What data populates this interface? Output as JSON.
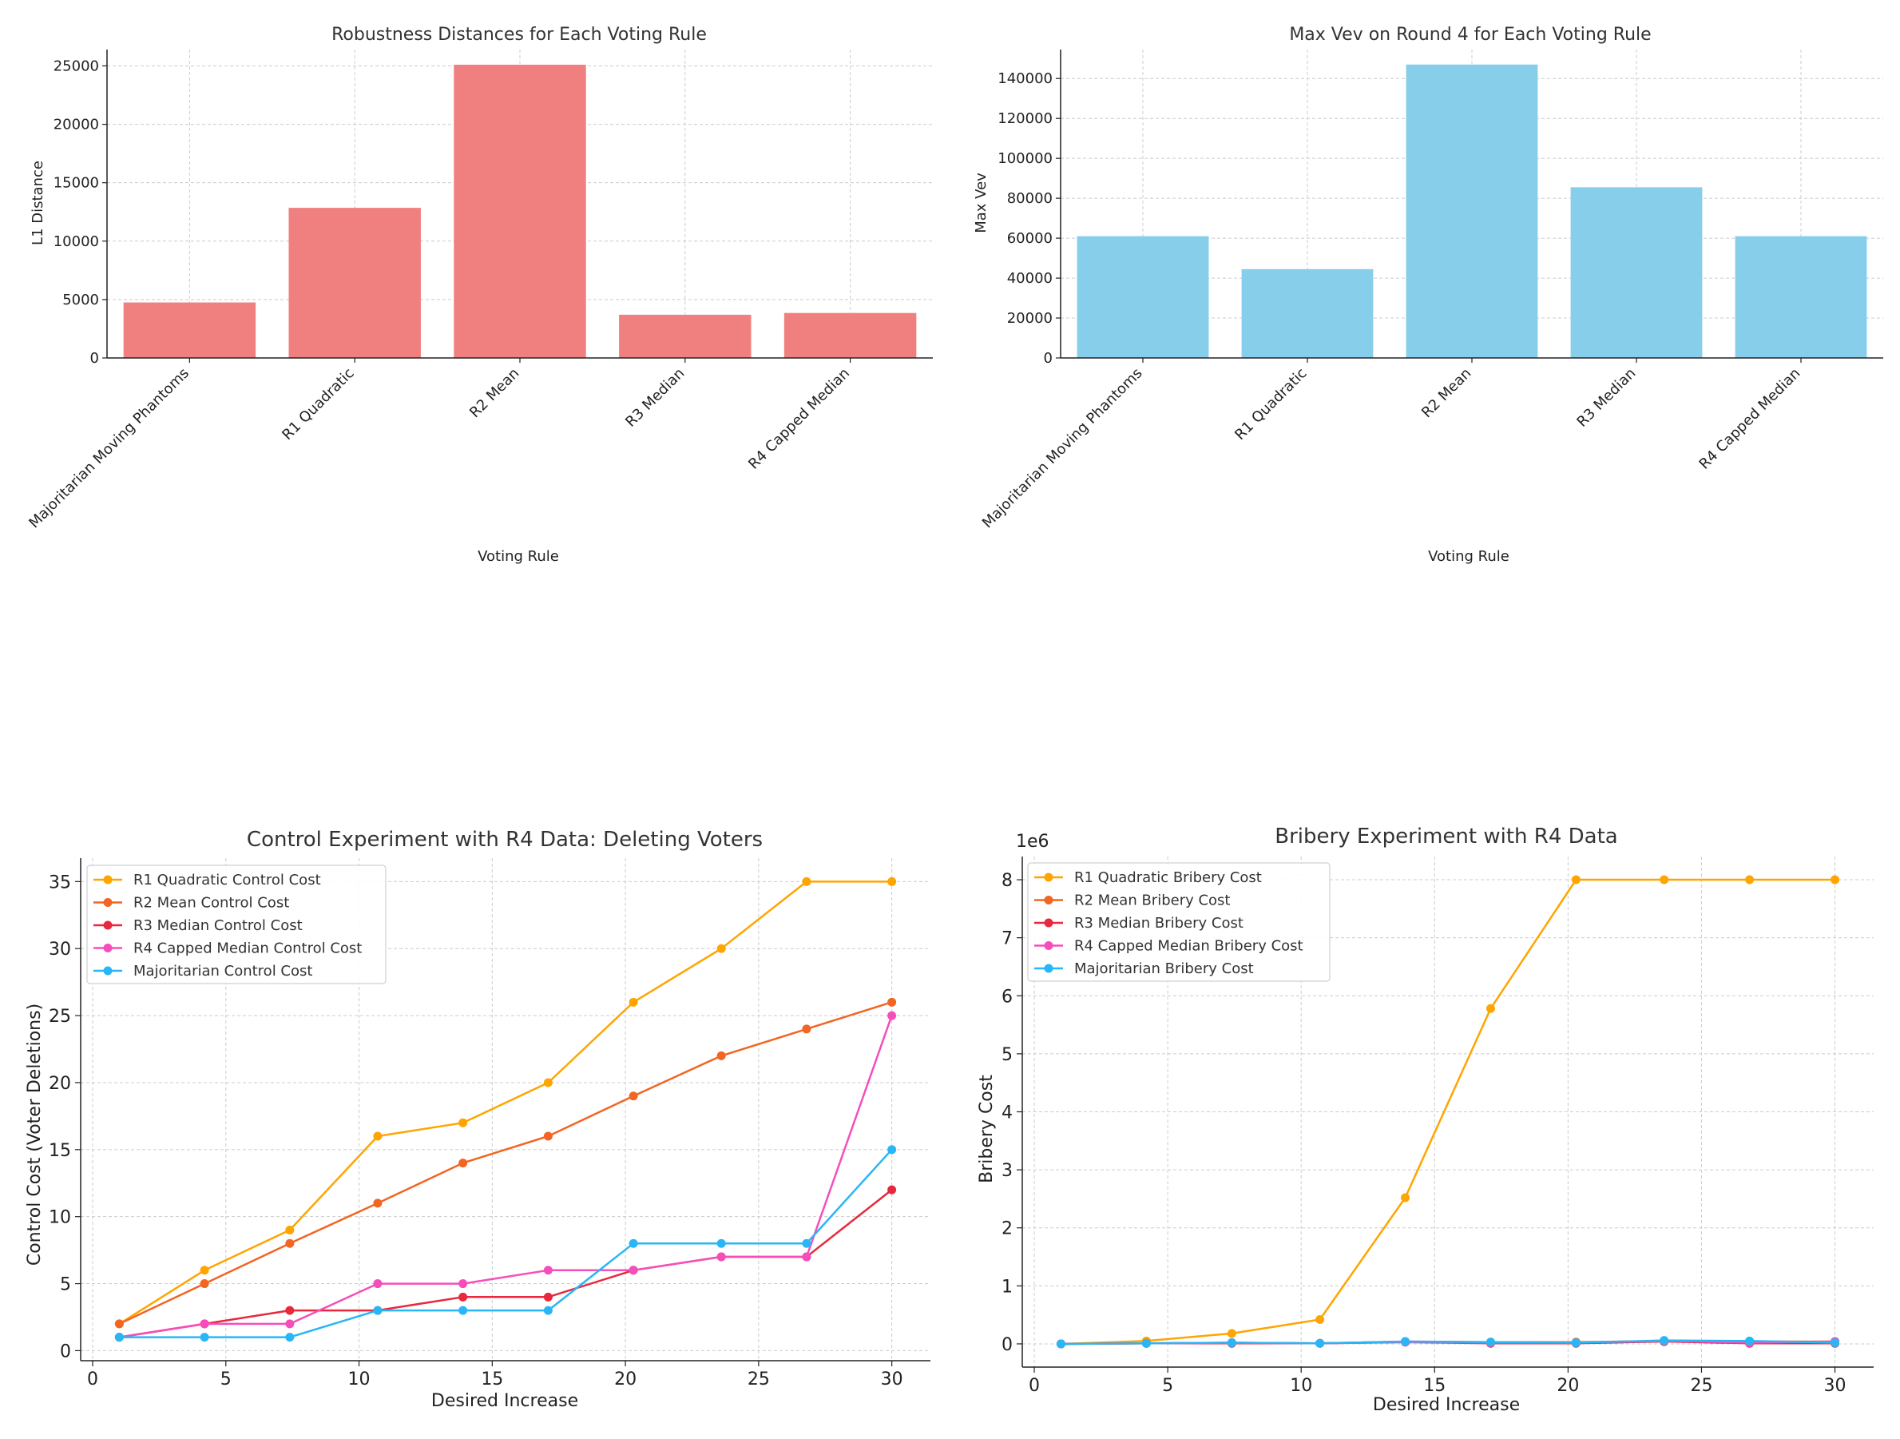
{
  "chart_data": [
    {
      "id": "robustness",
      "type": "bar",
      "title": "Robustness Distances for Each Voting Rule",
      "xlabel": "Voting Rule",
      "ylabel": "L1 Distance",
      "categories": [
        "Majoritarian Moving Phantoms",
        "R1 Quadratic",
        "R2 Mean",
        "R3 Median",
        "R4 Capped Median"
      ],
      "values": [
        4750,
        12850,
        25100,
        3700,
        3850
      ],
      "ylim": [
        0,
        26400
      ],
      "yticks": [
        0,
        5000,
        10000,
        15000,
        20000,
        25000
      ],
      "color": "#f08080",
      "grid": true
    },
    {
      "id": "maxvev",
      "type": "bar",
      "title": "Max Vev on Round 4 for Each Voting Rule",
      "xlabel": "Voting Rule",
      "ylabel": "Max Vev",
      "categories": [
        "Majoritarian Moving Phantoms",
        "R1 Quadratic",
        "R2 Mean",
        "R3 Median",
        "R4 Capped Median"
      ],
      "values": [
        61000,
        44500,
        147000,
        85500,
        61000
      ],
      "ylim": [
        0,
        154500
      ],
      "yticks": [
        0,
        20000,
        40000,
        60000,
        80000,
        100000,
        120000,
        140000
      ],
      "color": "#87ceeb",
      "grid": true
    },
    {
      "id": "control",
      "type": "line",
      "title": "Control Experiment with R4 Data: Deleting Voters",
      "xlabel": "Desired Increase",
      "ylabel": "Control Cost (Voter Deletions)",
      "x": [
        1,
        4.2,
        7.4,
        10.7,
        13.9,
        17.1,
        20.3,
        23.6,
        26.8,
        30
      ],
      "xlim": [
        -0.45,
        31.45
      ],
      "ylim": [
        -0.75,
        36.75
      ],
      "xticks": [
        0,
        5,
        10,
        15,
        20,
        25,
        30
      ],
      "yticks": [
        0,
        5,
        10,
        15,
        20,
        25,
        30,
        35
      ],
      "legend_position": "top-left",
      "grid": true,
      "series": [
        {
          "name": "R1 Quadratic Control Cost",
          "color": "#ffa500",
          "values": [
            2,
            6,
            9,
            16,
            17,
            20,
            26,
            30,
            35,
            35
          ]
        },
        {
          "name": "R2 Mean Control Cost",
          "color": "#f26522",
          "values": [
            2,
            5,
            8,
            11,
            14,
            16,
            19,
            22,
            24,
            26
          ]
        },
        {
          "name": "R3 Median Control Cost",
          "color": "#e8283c",
          "values": [
            1,
            2,
            3,
            3,
            4,
            4,
            6,
            7,
            7,
            12
          ]
        },
        {
          "name": "R4 Capped Median Control Cost",
          "color": "#f54ebb",
          "values": [
            1,
            2,
            2,
            5,
            5,
            6,
            6,
            7,
            7,
            25
          ]
        },
        {
          "name": "Majoritarian Control Cost",
          "color": "#29b6f6",
          "values": [
            1,
            1,
            1,
            3,
            3,
            3,
            8,
            8,
            8,
            15
          ]
        }
      ]
    },
    {
      "id": "bribery",
      "type": "line",
      "title": "Bribery Experiment with R4 Data",
      "xlabel": "Desired Increase",
      "ylabel": "Bribery Cost",
      "offset_label": "1e6",
      "x": [
        1,
        4.2,
        7.4,
        10.7,
        13.9,
        17.1,
        20.3,
        23.6,
        26.8,
        30
      ],
      "xlim": [
        -0.45,
        31.45
      ],
      "ylim": [
        -0.4,
        8.4
      ],
      "xticks": [
        0,
        5,
        10,
        15,
        20,
        25,
        30
      ],
      "yticks": [
        0,
        1,
        2,
        3,
        4,
        5,
        6,
        7,
        8
      ],
      "legend_position": "top-left",
      "grid": true,
      "series": [
        {
          "name": "R1 Quadratic Bribery Cost",
          "color": "#ffa500",
          "values": [
            0,
            0.05,
            0.18,
            0.42,
            2.52,
            5.78,
            8.0,
            8.0,
            8.0,
            8.0
          ]
        },
        {
          "name": "R2 Mean Bribery Cost",
          "color": "#f26522",
          "values": [
            0,
            0.01,
            0.02,
            0.01,
            0.04,
            0.03,
            0.03,
            0.05,
            0.04,
            0.04
          ]
        },
        {
          "name": "R3 Median Bribery Cost",
          "color": "#e8283c",
          "values": [
            0,
            0.01,
            0.01,
            0.01,
            0.03,
            0.01,
            0.01,
            0.04,
            0.01,
            0.01
          ]
        },
        {
          "name": "R4 Capped Median Bribery Cost",
          "color": "#f54ebb",
          "values": [
            0,
            0.01,
            0.02,
            0.01,
            0.03,
            0.02,
            0.02,
            0.05,
            0.02,
            0.04
          ]
        },
        {
          "name": "Majoritarian Bribery Cost",
          "color": "#29b6f6",
          "values": [
            0,
            0.01,
            0.02,
            0.01,
            0.04,
            0.03,
            0.02,
            0.06,
            0.05,
            0.02
          ]
        }
      ]
    }
  ]
}
